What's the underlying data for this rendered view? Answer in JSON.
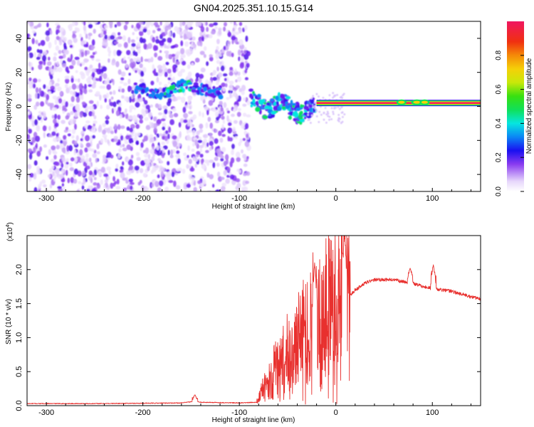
{
  "title": "GN04.2025.351.10.15.G14",
  "chart_data": [
    {
      "type": "heatmap",
      "name": "spectrogram",
      "xlabel": "Height of straight line (km)",
      "ylabel": "Frequency (Hz)",
      "xlim": [
        -320,
        150
      ],
      "ylim": [
        -50,
        50
      ],
      "x_ticks": [
        -300,
        -200,
        -100,
        0,
        100
      ],
      "x_tick_labels": [
        "-300",
        "-200",
        "-100",
        "0",
        "100"
      ],
      "y_ticks": [
        -40,
        -20,
        0,
        20,
        40
      ],
      "y_tick_labels": [
        "-40",
        "-20",
        "0",
        "20",
        "40"
      ],
      "noise_region_x": [
        -320,
        -90
      ],
      "signal_band": {
        "x": [
          -20,
          150
        ],
        "frequency": 2
      },
      "colorbar": {
        "label": "Normalized spectral amplitude",
        "range": [
          0.0,
          1.0
        ],
        "ticks": [
          0.0,
          0.2,
          0.4,
          0.6,
          0.8
        ],
        "tick_labels": [
          "0.0",
          "0.2",
          "0.4",
          "0.6",
          "0.8"
        ]
      }
    },
    {
      "type": "line",
      "name": "snr",
      "xlabel": "Height of straight line (km)",
      "ylabel": "SNR (10 * v/v)",
      "y_scale_note": "(x10",
      "y_scale_exp": "4",
      "y_scale_close": ")",
      "xlim": [
        -320,
        150
      ],
      "ylim": [
        0,
        2.5
      ],
      "x_ticks": [
        -300,
        -200,
        -100,
        0,
        100
      ],
      "x_tick_labels": [
        "-300",
        "-200",
        "-100",
        "0",
        "100"
      ],
      "y_ticks": [
        0.0,
        0.5,
        1.0,
        1.5,
        2.0
      ],
      "y_tick_labels": [
        "0.0",
        "0.5",
        "1.0",
        "1.5",
        "2.0"
      ],
      "line_color": "#e8302e",
      "envelope": [
        [
          -320,
          0.03
        ],
        [
          -250,
          0.03
        ],
        [
          -160,
          0.04
        ],
        [
          -148,
          0.06
        ],
        [
          -140,
          0.05
        ],
        [
          -100,
          0.04
        ],
        [
          -82,
          0.05
        ],
        [
          -72,
          0.3
        ],
        [
          -60,
          0.55
        ],
        [
          -50,
          0.7
        ],
        [
          -40,
          0.85
        ],
        [
          -30,
          1.0
        ],
        [
          -20,
          1.2
        ],
        [
          -10,
          1.4
        ],
        [
          0,
          1.5
        ],
        [
          10,
          1.55
        ],
        [
          20,
          1.7
        ],
        [
          30,
          1.8
        ],
        [
          40,
          1.85
        ],
        [
          60,
          1.85
        ],
        [
          70,
          1.82
        ],
        [
          80,
          1.8
        ],
        [
          90,
          1.75
        ],
        [
          100,
          1.72
        ],
        [
          120,
          1.68
        ],
        [
          140,
          1.6
        ],
        [
          150,
          1.57
        ]
      ],
      "features": [
        {
          "x": -146,
          "y": 0.16
        },
        {
          "x": -22,
          "y": 2.1
        },
        {
          "x": 9,
          "y": 2.5
        },
        {
          "x": 77,
          "y": 2.02
        },
        {
          "x": 101,
          "y": 2.07
        }
      ]
    }
  ]
}
